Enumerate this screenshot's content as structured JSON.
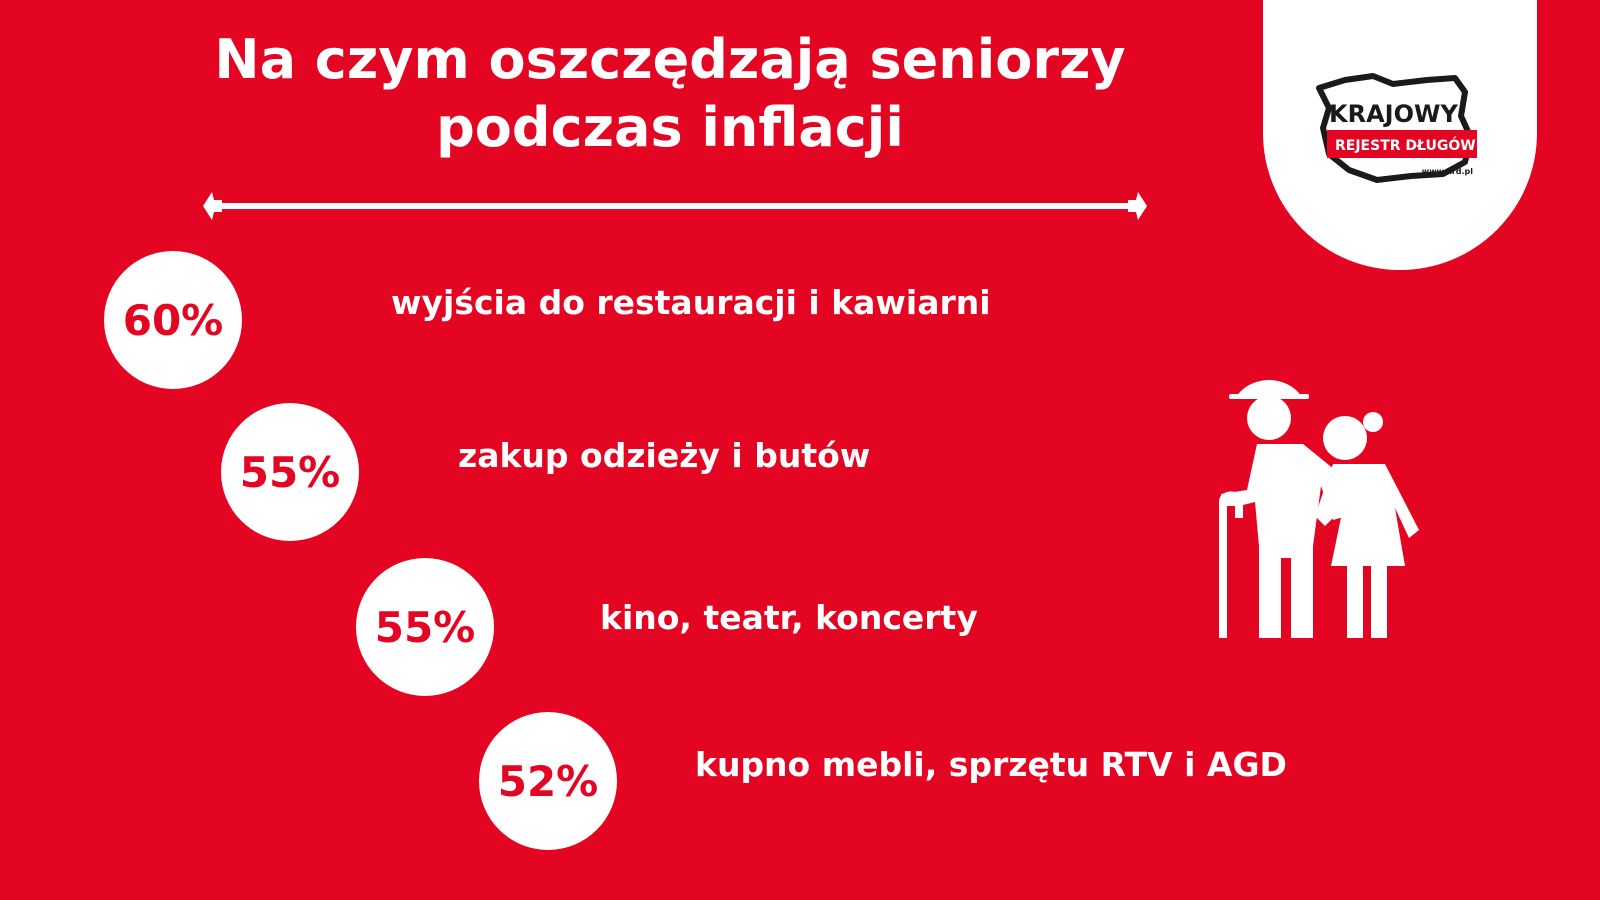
{
  "title_line1": "Na czym oszczędzają seniorzy",
  "title_line2": "podczas inflacji",
  "logo": {
    "word": "KRAJOWY",
    "band": "REJESTR DŁUGÓW",
    "url": "www.krd.pl"
  },
  "icons": {
    "seniors": "elderly-couple-icon",
    "logo_map": "poland-map-icon"
  },
  "colors": {
    "background": "#e30521",
    "text": "#ffffff",
    "circle": "#ffffff",
    "value_text": "#e30521"
  },
  "chart_data": {
    "type": "table",
    "title": "Na czym oszczędzają seniorzy podczas inflacji",
    "categories": [
      "wyjścia do restauracji i kawiarni",
      "zakup odzieży i butów",
      "kino, teatr, koncerty",
      "kupno mebli, sprzętu RTV i AGD"
    ],
    "values": [
      60,
      55,
      55,
      52
    ],
    "value_labels": [
      "60%",
      "55%",
      "55%",
      "52%"
    ],
    "unit": "%"
  }
}
